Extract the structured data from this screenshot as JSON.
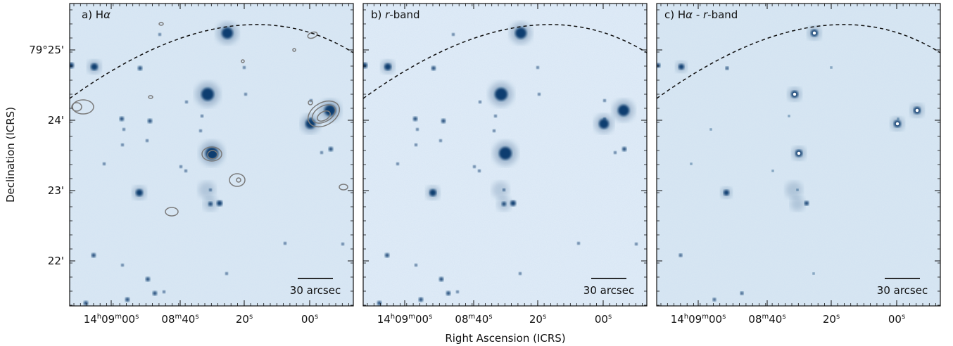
{
  "figure": {
    "xlabel": "Right Ascension (ICRS)",
    "ylabel": "Declination (ICRS)",
    "colors": {
      "background": "#dbe8f4",
      "source": "#0d3e70",
      "contour": "#7b7b7b",
      "dashed": "#111111"
    },
    "ra_ticks": [
      {
        "main": "14",
        "u1": "h",
        "mid": "09",
        "u2": "m",
        "end": "00",
        "u3": "s"
      },
      {
        "main": "",
        "u1": "",
        "mid": "08",
        "u2": "m",
        "end": "40",
        "u3": "s"
      },
      {
        "main": "",
        "u1": "",
        "mid": "",
        "u2": "",
        "end": "20",
        "u3": "s"
      },
      {
        "main": "",
        "u1": "",
        "mid": "",
        "u2": "",
        "end": "00",
        "u3": "s"
      }
    ],
    "dec_ticks": [
      "79°25'",
      "24'",
      "23'",
      "22'"
    ],
    "panels": [
      {
        "prefix": "a) H",
        "italic": "α",
        "suffix": "",
        "scalebar": "30 arcsec",
        "contours": true
      },
      {
        "prefix": "b) ",
        "italic": "r",
        "suffix": "-band",
        "scalebar": "30 arcsec",
        "contours": false
      },
      {
        "prefix": "c) H",
        "italic": "α",
        "suffix": " - ",
        "italic2": "r",
        "suffix2": "-band",
        "scalebar": "30 arcsec",
        "contours": false
      }
    ]
  }
}
